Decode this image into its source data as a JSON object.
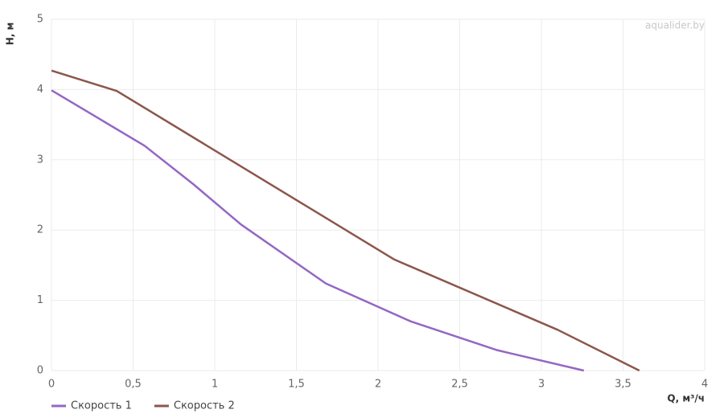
{
  "chart_data": {
    "type": "line",
    "watermark": "aqualider.by",
    "x_label": "Q, м³/ч",
    "y_label": "H, м",
    "xlim": [
      0,
      4
    ],
    "ylim": [
      0,
      5
    ],
    "xticks": [
      0,
      {
        "value": 0.5,
        "label": "0,5"
      },
      1,
      {
        "value": 1.5,
        "label": "1,5"
      },
      2,
      {
        "value": 2.5,
        "label": "2,5"
      },
      3,
      {
        "value": 3.5,
        "label": "3,5"
      },
      4
    ],
    "yticks": [
      0,
      1,
      2,
      3,
      4,
      5
    ],
    "grid": true,
    "legend": "bottom-left",
    "series": [
      {
        "name": "Скорость 1",
        "color": "#9467c4",
        "x": [
          0,
          0.57,
          0.87,
          1.16,
          1.68,
          2.2,
          2.73,
          3.26
        ],
        "values": [
          3.99,
          3.2,
          2.65,
          2.08,
          1.24,
          0.7,
          0.29,
          0
        ]
      },
      {
        "name": "Скорость 2",
        "color": "#8c564b",
        "x": [
          0,
          0.4,
          2.1,
          3.1,
          3.6
        ],
        "values": [
          4.27,
          3.98,
          1.58,
          0.58,
          0
        ]
      }
    ]
  }
}
